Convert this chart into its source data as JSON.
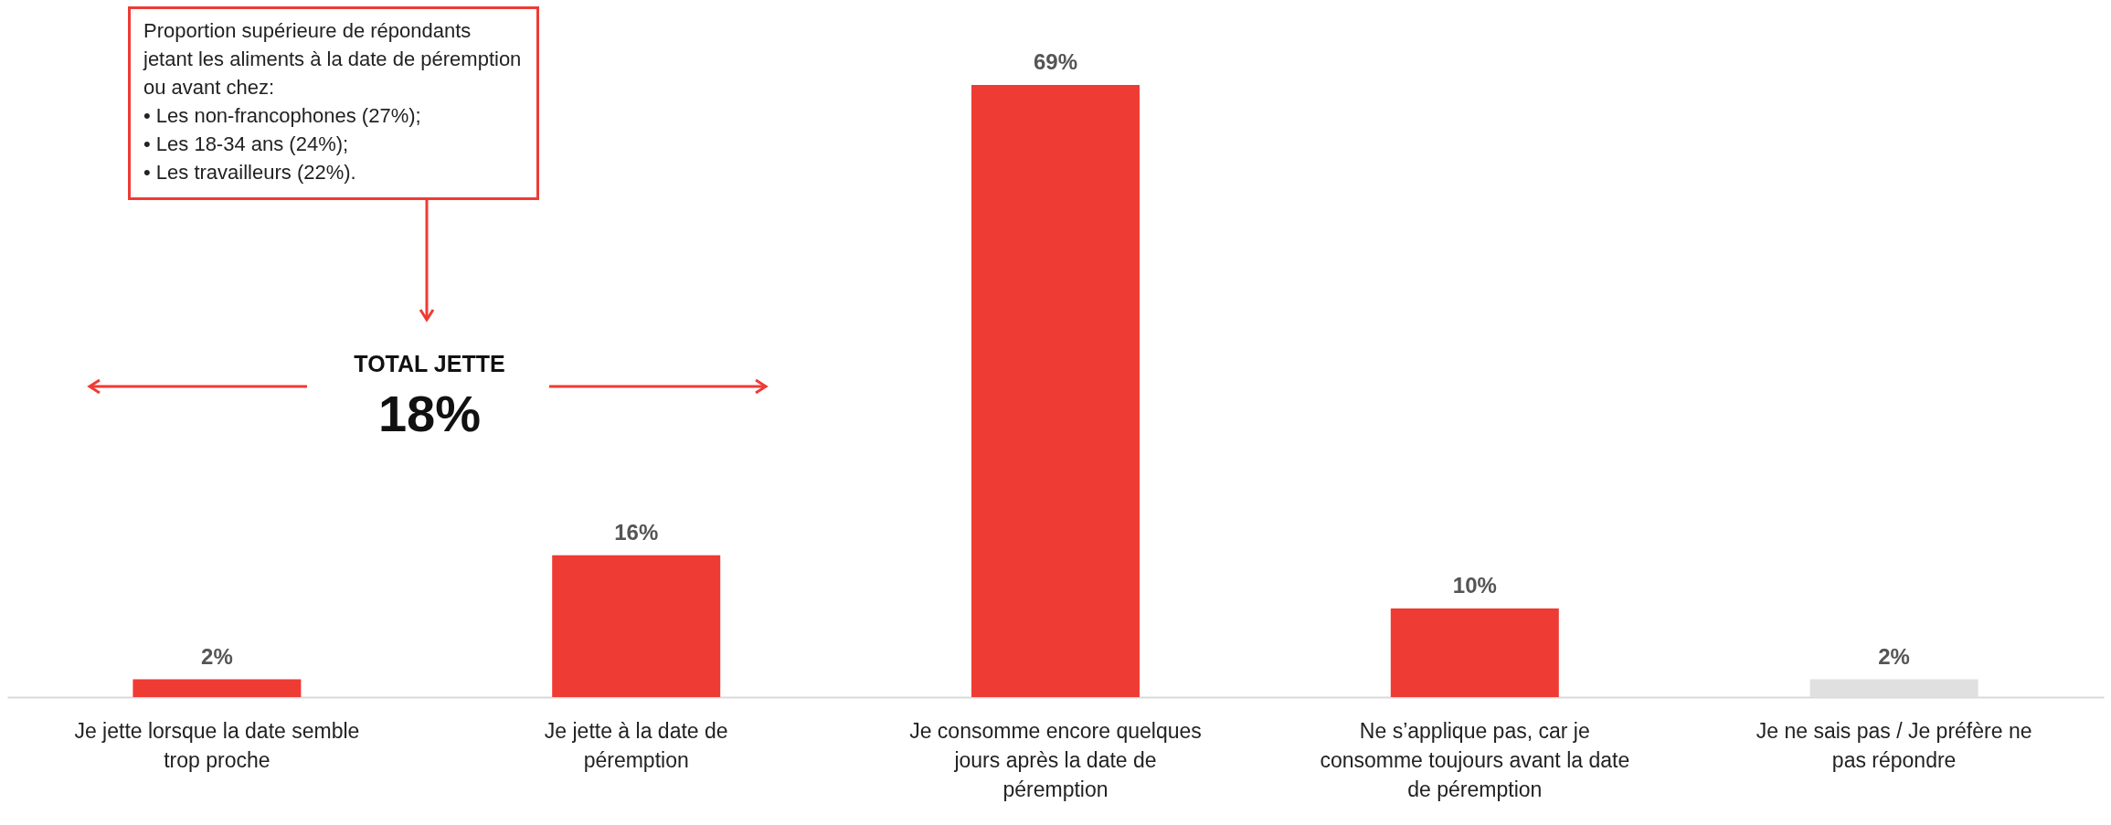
{
  "chart_data": {
    "type": "bar",
    "categories": [
      "Je jette lorsque la date semble trop proche",
      "Je jette à la date de péremption",
      "Je consomme encore quelques jours après la date de péremption",
      "Ne s’applique pas, car je consomme toujours avant la date de péremption",
      "Je ne sais pas / Je préfère ne pas répondre"
    ],
    "values": [
      2,
      16,
      69,
      10,
      2
    ],
    "colors": [
      "#ee3b34",
      "#ee3b34",
      "#ee3b34",
      "#ee3b34",
      "#e0e0e0"
    ],
    "value_labels": [
      "2%",
      "16%",
      "69%",
      "10%",
      "2%"
    ],
    "grid": false,
    "annotations": [
      "Proportion supérieure de répondants jetant les aliments à la date de péremption ou avant chez:",
      "•  Les non-francophones (27%);",
      "•  Les 18-34 ans (24%);",
      "•  Les travailleurs  (22%).",
      "TOTAL JETTE",
      "18%"
    ]
  }
}
